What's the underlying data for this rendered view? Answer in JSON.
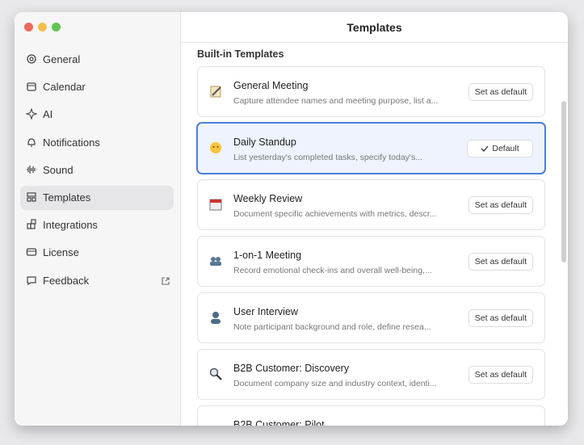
{
  "sidebar": {
    "items": [
      "General",
      "Calendar",
      "AI",
      "Notifications",
      "Sound",
      "Templates",
      "Integrations",
      "License",
      "Feedback"
    ]
  },
  "header": {
    "title": "Templates"
  },
  "section": {
    "title": "Built-in Templates"
  },
  "templates": [
    {
      "name": "General Meeting",
      "description": "Capture attendee names and meeting purpose, list a...",
      "button": "Set as default"
    },
    {
      "name": "Daily Standup",
      "description": "List yesterday's completed tasks, specify today's...",
      "button": "Default"
    },
    {
      "name": "Weekly Review",
      "description": "Document specific achievements with metrics, descr...",
      "button": "Set as default"
    },
    {
      "name": "1-on-1 Meeting",
      "description": "Record emotional check-ins and overall well-being,...",
      "button": "Set as default"
    },
    {
      "name": "User Interview",
      "description": "Note participant background and role, define resea...",
      "button": "Set as default"
    },
    {
      "name": "B2B Customer: Discovery",
      "description": "Document company size and industry context, identi...",
      "button": "Set as default"
    },
    {
      "name": "B2B Customer: Pilot"
    }
  ]
}
